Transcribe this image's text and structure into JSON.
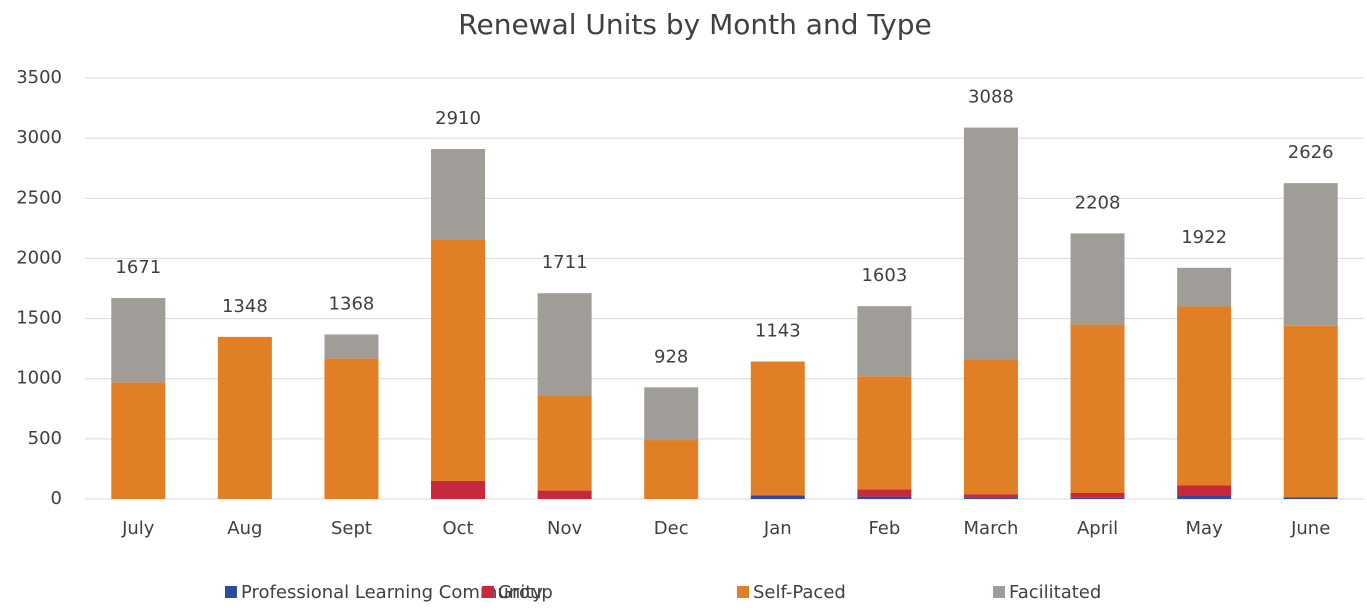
{
  "chart_data": {
    "type": "stacked_bar",
    "title": "Renewal Units by Month and Type",
    "categories": [
      "July",
      "Aug",
      "Sept",
      "Oct",
      "Nov",
      "Dec",
      "Jan",
      "Feb",
      "March",
      "April",
      "May",
      "June"
    ],
    "series": [
      {
        "name": "Professional Learning Community",
        "color": "#2f4b9c",
        "values": [
          0,
          0,
          0,
          0,
          0,
          0,
          30,
          20,
          15,
          10,
          25,
          15
        ]
      },
      {
        "name": "Group",
        "color": "#c8283c",
        "values": [
          0,
          0,
          0,
          150,
          70,
          0,
          0,
          60,
          25,
          40,
          90,
          0
        ]
      },
      {
        "name": "Self-Paced",
        "color": "#e07f26",
        "values": [
          970,
          1348,
          1170,
          2010,
          790,
          490,
          1113,
          940,
          1120,
          1400,
          1485,
          1425
        ]
      },
      {
        "name": "Facilitated",
        "color": "#a09d99",
        "values": [
          701,
          0,
          198,
          750,
          851,
          438,
          0,
          583,
          1928,
          758,
          322,
          1186
        ]
      }
    ],
    "totals": [
      1671,
      1348,
      1368,
      2910,
      1711,
      928,
      1143,
      1603,
      3088,
      2208,
      1922,
      2626
    ],
    "ylim": [
      0,
      3500
    ],
    "yticks": [
      0,
      500,
      1000,
      1500,
      2000,
      2500,
      3000,
      3500
    ],
    "grid": true,
    "legend": "bottom"
  }
}
